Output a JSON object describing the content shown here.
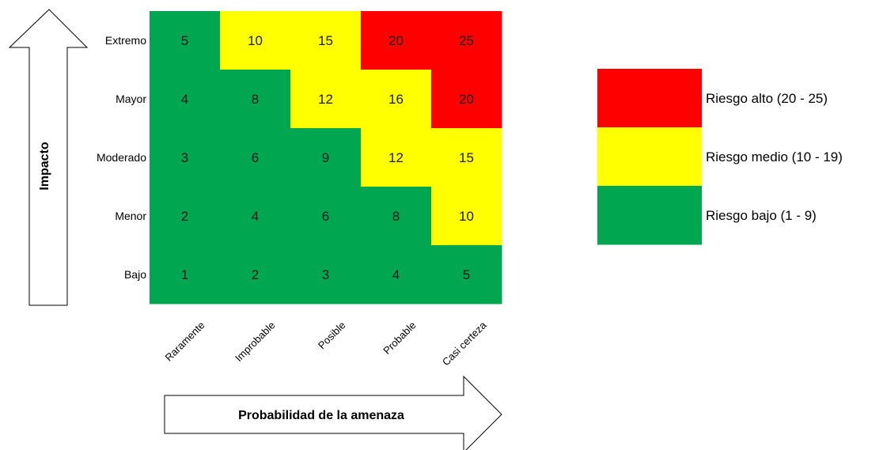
{
  "colors": {
    "high": "#ff0000",
    "medium": "#ffff00",
    "low": "#00a650",
    "text": "#1a1a1a",
    "outline": "#000000"
  },
  "chart_data": {
    "type": "heatmap",
    "title": "",
    "ylabel": "Impacto",
    "xlabel": "Probabilidad de la amenaza",
    "rows": [
      "Extremo",
      "Mayor",
      "Moderado",
      "Menor",
      "Bajo"
    ],
    "columns": [
      "Raramente",
      "Improbable",
      "Posible",
      "Probable",
      "Casi certeza"
    ],
    "values": [
      [
        5,
        10,
        15,
        20,
        25
      ],
      [
        4,
        8,
        12,
        16,
        20
      ],
      [
        3,
        6,
        9,
        12,
        15
      ],
      [
        2,
        4,
        6,
        8,
        10
      ],
      [
        1,
        2,
        3,
        4,
        5
      ]
    ],
    "levels": [
      [
        "low",
        "medium",
        "medium",
        "high",
        "high"
      ],
      [
        "low",
        "low",
        "medium",
        "medium",
        "high"
      ],
      [
        "low",
        "low",
        "low",
        "medium",
        "medium"
      ],
      [
        "low",
        "low",
        "low",
        "low",
        "medium"
      ],
      [
        "low",
        "low",
        "low",
        "low",
        "low"
      ]
    ],
    "legend": [
      {
        "level": "high",
        "label": "Riesgo alto (20 - 25)"
      },
      {
        "level": "medium",
        "label": "Riesgo medio (10 - 19)"
      },
      {
        "level": "low",
        "label": "Riesgo bajo (1 - 9)"
      }
    ]
  }
}
